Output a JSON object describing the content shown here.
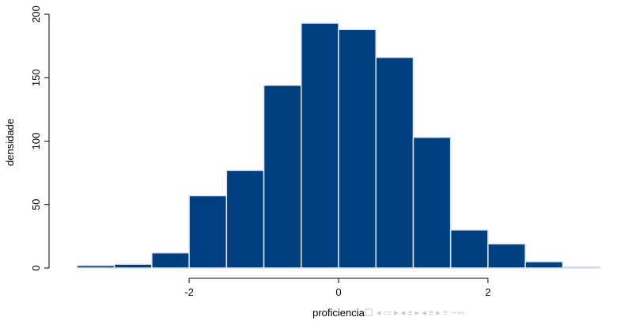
{
  "chart_data": {
    "type": "histogram",
    "xlabel": "proficiencia",
    "ylabel": "densidade",
    "bins": [
      -3.5,
      -3.0,
      -2.5,
      -2.0,
      -1.5,
      -1.0,
      -0.5,
      0.0,
      0.5,
      1.0,
      1.5,
      2.0,
      2.5,
      3.0,
      3.5
    ],
    "values": [
      2,
      3,
      12,
      57,
      77,
      144,
      193,
      188,
      166,
      103,
      30,
      19,
      5,
      1
    ],
    "color": "#003f80",
    "edgecolor": "#dde6f0",
    "xlim": [
      -3.78,
      3.78
    ],
    "ylim": [
      0,
      200
    ],
    "xticks": [
      -2,
      0,
      2
    ],
    "yticks": [
      0,
      50,
      100,
      150,
      200
    ]
  }
}
